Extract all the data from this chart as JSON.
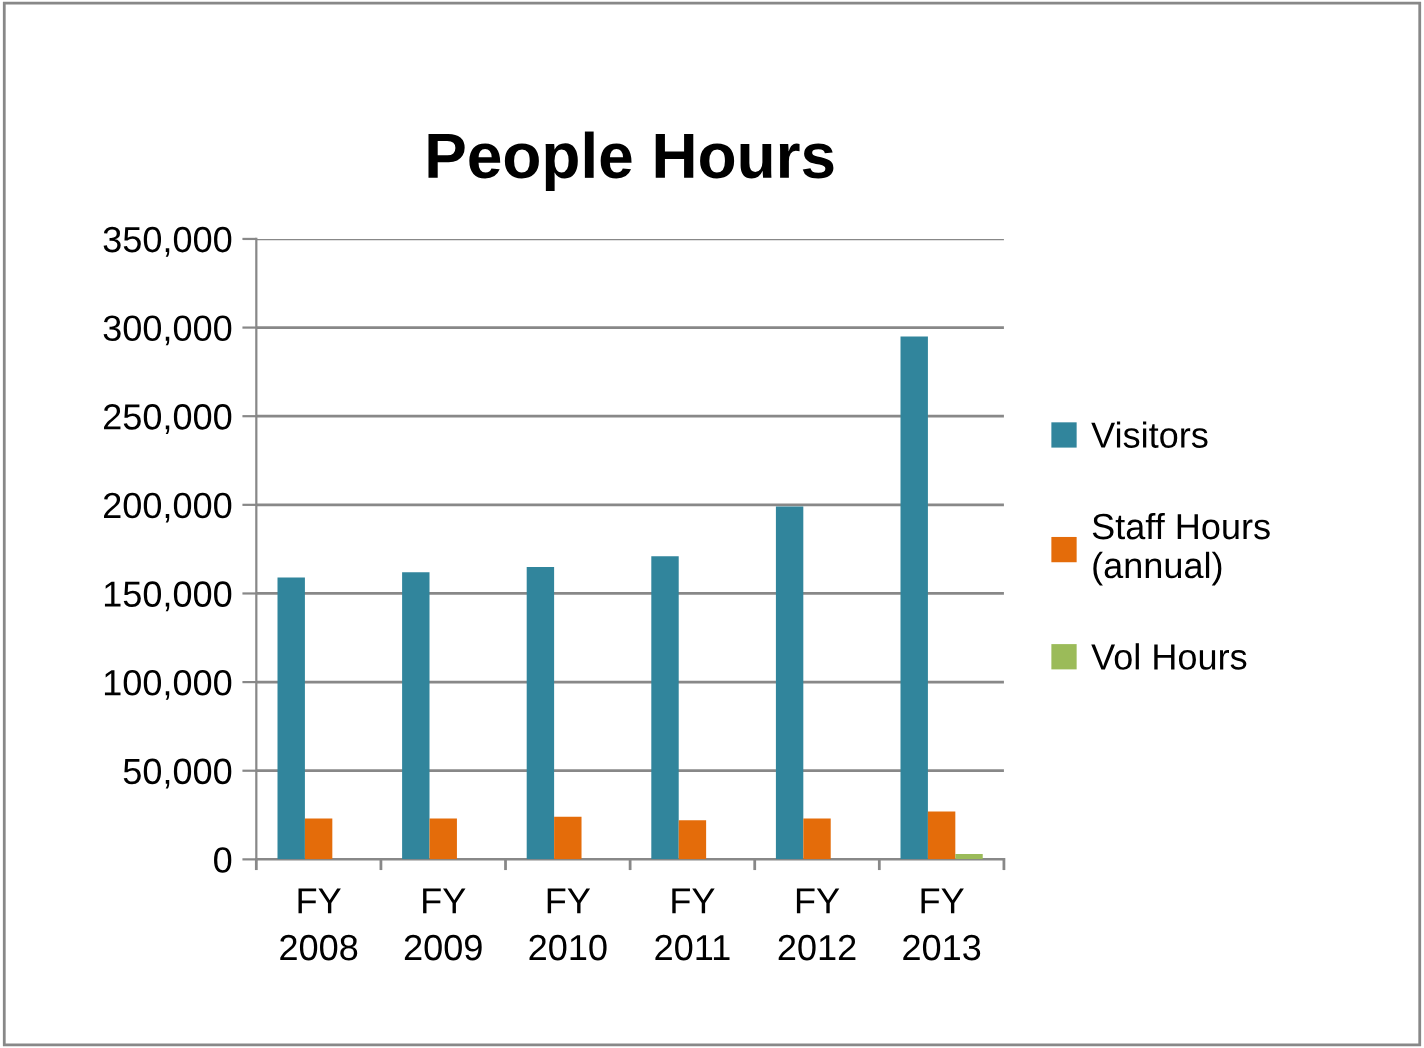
{
  "chart_data": {
    "type": "bar",
    "title": "People Hours",
    "categories": [
      "FY\n2008",
      "FY\n2009",
      "FY\n2010",
      "FY\n2011",
      "FY\n2012",
      "FY\n2013"
    ],
    "series": [
      {
        "name": "Visitors",
        "color": "#31859c",
        "values": [
          159000,
          162000,
          165000,
          171000,
          199000,
          295000
        ]
      },
      {
        "name": "Staff Hours\n(annual)",
        "color": "#e46c0a",
        "values": [
          23000,
          23000,
          24000,
          22000,
          23000,
          27000
        ]
      },
      {
        "name": "Vol Hours",
        "color": "#9bbb59",
        "values": [
          0,
          0,
          null,
          null,
          null,
          3000
        ]
      }
    ],
    "ylim": [
      0,
      350000
    ],
    "yticks": [
      {
        "value": 0,
        "label": "0"
      },
      {
        "value": 50000,
        "label": "50,000"
      },
      {
        "value": 100000,
        "label": "100,000"
      },
      {
        "value": 150000,
        "label": "150,000"
      },
      {
        "value": 200000,
        "label": "200,000"
      },
      {
        "value": 250000,
        "label": "250,000"
      },
      {
        "value": 300000,
        "label": "300,000"
      },
      {
        "value": 350000,
        "label": "350,000"
      }
    ],
    "grid": "y",
    "legend": "right"
  }
}
